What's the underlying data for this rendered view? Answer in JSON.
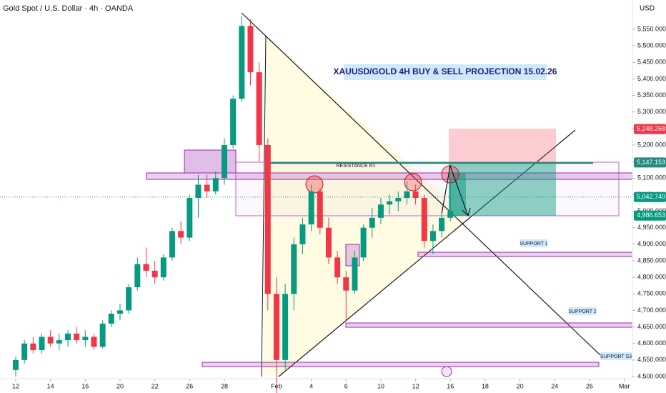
{
  "chart_data": {
    "type": "candlestick",
    "symbol": "Gold Spot / U.S. Dollar · 4h · OANDA",
    "title": "XAUUSD/GOLD 4H BUY & SELL PROJECTION 15.02.26",
    "currency": "USD",
    "annotations": [
      "RESISTANCE R1",
      "SUPPORT 1",
      "SUPPORT 2",
      "SUPPORT S3"
    ],
    "up_color": "#089981",
    "down_color": "#f23645",
    "xlim": [
      -0.904,
      35.47
    ],
    "ylim": [
      4493.5,
      5638.5
    ],
    "xticks": [
      {
        "value": 0,
        "label": "12"
      },
      {
        "value": 2,
        "label": "14"
      },
      {
        "value": 4,
        "label": "16"
      },
      {
        "value": 6,
        "label": "20"
      },
      {
        "value": 8,
        "label": "22"
      },
      {
        "value": 10,
        "label": "26"
      },
      {
        "value": 12,
        "label": "28"
      },
      {
        "value": 15,
        "label": "Feb"
      },
      {
        "value": 17,
        "label": "4"
      },
      {
        "value": 19,
        "label": "6"
      },
      {
        "value": 21,
        "label": "10"
      },
      {
        "value": 23,
        "label": "12"
      },
      {
        "value": 25,
        "label": "16"
      },
      {
        "value": 27,
        "label": "18"
      },
      {
        "value": 29,
        "label": "20"
      },
      {
        "value": 31,
        "label": "24"
      },
      {
        "value": 33,
        "label": "26"
      },
      {
        "value": 35,
        "label": "Mar"
      }
    ],
    "yticks": [
      {
        "value": 4500,
        "label": "4,500.000"
      },
      {
        "value": 4550,
        "label": "4,550.000"
      },
      {
        "value": 4600,
        "label": "4,600.000"
      },
      {
        "value": 4650,
        "label": "4,650.000"
      },
      {
        "value": 4700,
        "label": "4,700.000"
      },
      {
        "value": 4750,
        "label": "4,750.000"
      },
      {
        "value": 4800,
        "label": "4,800.000"
      },
      {
        "value": 4850,
        "label": "4,850.000"
      },
      {
        "value": 4900,
        "label": "4,900.000"
      },
      {
        "value": 4950,
        "label": "4,950.000"
      },
      {
        "value": 5000,
        "label": "5,000.000"
      },
      {
        "value": 5050,
        "label": "5,050.000"
      },
      {
        "value": 5100,
        "label": "5,100.000"
      },
      {
        "value": 5150,
        "label": "5,150.000"
      },
      {
        "value": 5200,
        "label": "5,200.000"
      },
      {
        "value": 5250,
        "label": "5,250.000"
      },
      {
        "value": 5300,
        "label": "5,300.000"
      },
      {
        "value": 5350,
        "label": "5,350.000"
      },
      {
        "value": 5400,
        "label": "5,400.000"
      },
      {
        "value": 5450,
        "label": "5,450.000"
      },
      {
        "value": 5500,
        "label": "5,500.000"
      },
      {
        "value": 5550,
        "label": "5,550.000"
      }
    ],
    "price_labels": [
      {
        "value": 5248.268,
        "label": "5,248.268",
        "color": "#f23645"
      },
      {
        "value": 5147.153,
        "label": "5,147.153",
        "color": "#22897d"
      },
      {
        "value": 5042.74,
        "label": "5,042.740",
        "color": "#089981"
      },
      {
        "value": 4986.653,
        "label": "4,986.653",
        "color": "#089981"
      }
    ],
    "x": [
      0,
      0.5,
      1,
      1.5,
      2,
      2.5,
      3,
      3.5,
      4,
      4.5,
      5,
      5.5,
      6,
      6.5,
      7,
      7.5,
      8,
      8.5,
      9,
      9.5,
      10,
      10.5,
      11,
      11.5,
      12,
      12.5,
      13,
      13.5,
      14,
      14.5,
      15,
      15.5,
      16,
      16.5,
      17,
      17.5,
      18,
      18.5,
      19,
      19.5,
      20,
      20.5,
      21,
      21.5,
      22,
      22.5,
      23,
      23.5,
      24,
      24.5,
      25
    ],
    "open": [
      4520,
      4550,
      4600,
      4580,
      4620,
      4600,
      4610,
      4630,
      4610,
      4620,
      4590,
      4660,
      4690,
      4700,
      4770,
      4840,
      4820,
      4800,
      4860,
      4940,
      4920,
      5040,
      5080,
      5060,
      5100,
      5200,
      5340,
      5560,
      5420,
      5200,
      4750,
      4550,
      4750,
      4900,
      4960,
      5060,
      4950,
      4860,
      4800,
      4760,
      4860,
      4950,
      4980,
      5020,
      5030,
      5040,
      5060,
      5040,
      4910,
      4940,
      4980
    ],
    "high": [
      4560,
      4610,
      4620,
      4630,
      4640,
      4630,
      4640,
      4650,
      4640,
      4630,
      4670,
      4700,
      4720,
      4780,
      4860,
      4890,
      4850,
      4870,
      4950,
      4970,
      5050,
      5110,
      5110,
      5120,
      5220,
      5350,
      5590,
      5580,
      5450,
      5220,
      4800,
      4780,
      4920,
      4980,
      5080,
      5070,
      4980,
      4880,
      4820,
      4880,
      4960,
      5010,
      5040,
      5050,
      5060,
      5090,
      5080,
      5050,
      4960,
      5000,
      5100
    ],
    "low": [
      4500,
      4540,
      4570,
      4570,
      4590,
      4580,
      4590,
      4600,
      4590,
      4580,
      4585,
      4650,
      4670,
      4690,
      4760,
      4800,
      4780,
      4790,
      4850,
      4900,
      4910,
      4980,
      5040,
      5050,
      5080,
      5190,
      5330,
      5380,
      5150,
      4700,
      4450,
      4520,
      4700,
      4870,
      4940,
      4930,
      4840,
      4780,
      4670,
      4750,
      4850,
      4920,
      4960,
      4990,
      5000,
      5020,
      5020,
      4890,
      4870,
      4920,
      4970
    ],
    "close": [
      4550,
      4600,
      4580,
      4620,
      4600,
      4610,
      4630,
      4610,
      4620,
      4590,
      4660,
      4690,
      4700,
      4770,
      4840,
      4820,
      4800,
      4860,
      4940,
      4920,
      5040,
      5080,
      5060,
      5100,
      5200,
      5340,
      5560,
      5420,
      5200,
      4750,
      4550,
      4750,
      4900,
      4960,
      5060,
      4950,
      4860,
      4800,
      4760,
      4860,
      4950,
      4980,
      5020,
      5030,
      5040,
      5060,
      5040,
      4910,
      4940,
      4980,
      5000
    ]
  }
}
